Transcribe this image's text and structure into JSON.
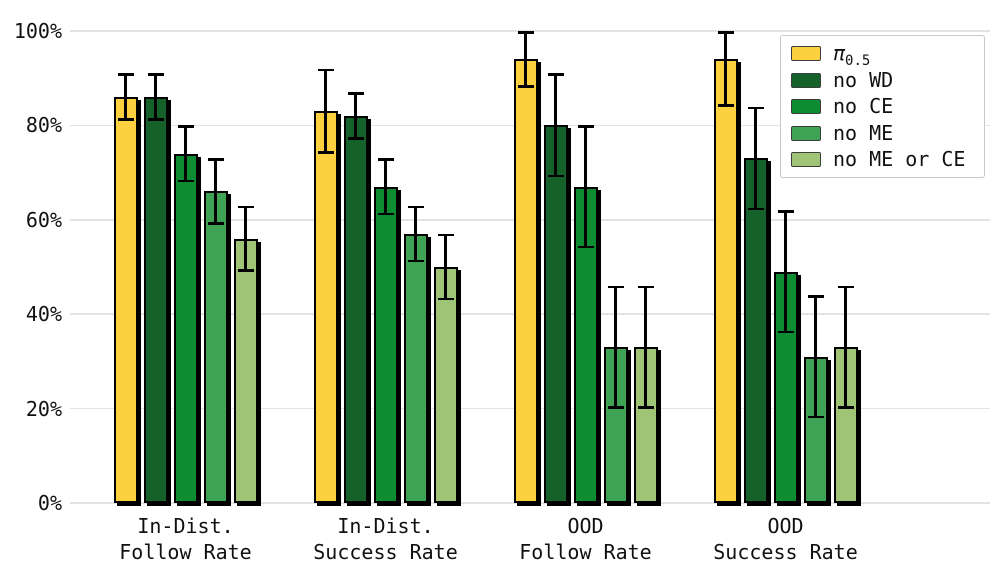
{
  "chart_data": {
    "type": "bar",
    "title": "",
    "xlabel": "",
    "ylabel": "",
    "ylim": [
      0,
      100
    ],
    "grid": true,
    "legend_position": "upper right",
    "y_ticks": [
      0,
      20,
      40,
      60,
      80,
      100
    ],
    "y_tick_labels": [
      "0%",
      "20%",
      "40%",
      "60%",
      "80%",
      "100%"
    ],
    "categories": [
      "In-Dist.\nFollow Rate",
      "In-Dist.\nSuccess Rate",
      "OOD\nFollow Rate",
      "OOD\nSuccess Rate"
    ],
    "series": [
      {
        "name": "π0.5",
        "name_base": "π",
        "name_sub": "0.5",
        "color": "#FCD03F",
        "values": [
          86,
          83,
          94,
          94
        ],
        "err_low": [
          81,
          74,
          88,
          84
        ],
        "err_high": [
          91,
          92,
          100,
          100
        ]
      },
      {
        "name": "no WD",
        "color": "#15612A",
        "values": [
          86,
          82,
          80,
          73
        ],
        "err_low": [
          81,
          77,
          69,
          62
        ],
        "err_high": [
          91,
          87,
          91,
          84
        ]
      },
      {
        "name": "no CE",
        "color": "#0D8C32",
        "values": [
          74,
          67,
          67,
          49
        ],
        "err_low": [
          68,
          61,
          54,
          36
        ],
        "err_high": [
          80,
          73,
          80,
          62
        ]
      },
      {
        "name": "no ME",
        "color": "#3FA355",
        "values": [
          66,
          57,
          33,
          31
        ],
        "err_low": [
          59,
          51,
          20,
          18
        ],
        "err_high": [
          73,
          63,
          46,
          44
        ]
      },
      {
        "name": "no ME or CE",
        "color": "#A0C476",
        "values": [
          56,
          50,
          33,
          33
        ],
        "err_low": [
          49,
          43,
          20,
          20
        ],
        "err_high": [
          63,
          57,
          46,
          46
        ]
      }
    ],
    "colors": {
      "background": "#ffffff",
      "grid": "#e3e3e3",
      "bar_edge": "#000000",
      "error_bar": "#000000",
      "text": "#111111",
      "legend_border": "#c9c9c9"
    }
  }
}
